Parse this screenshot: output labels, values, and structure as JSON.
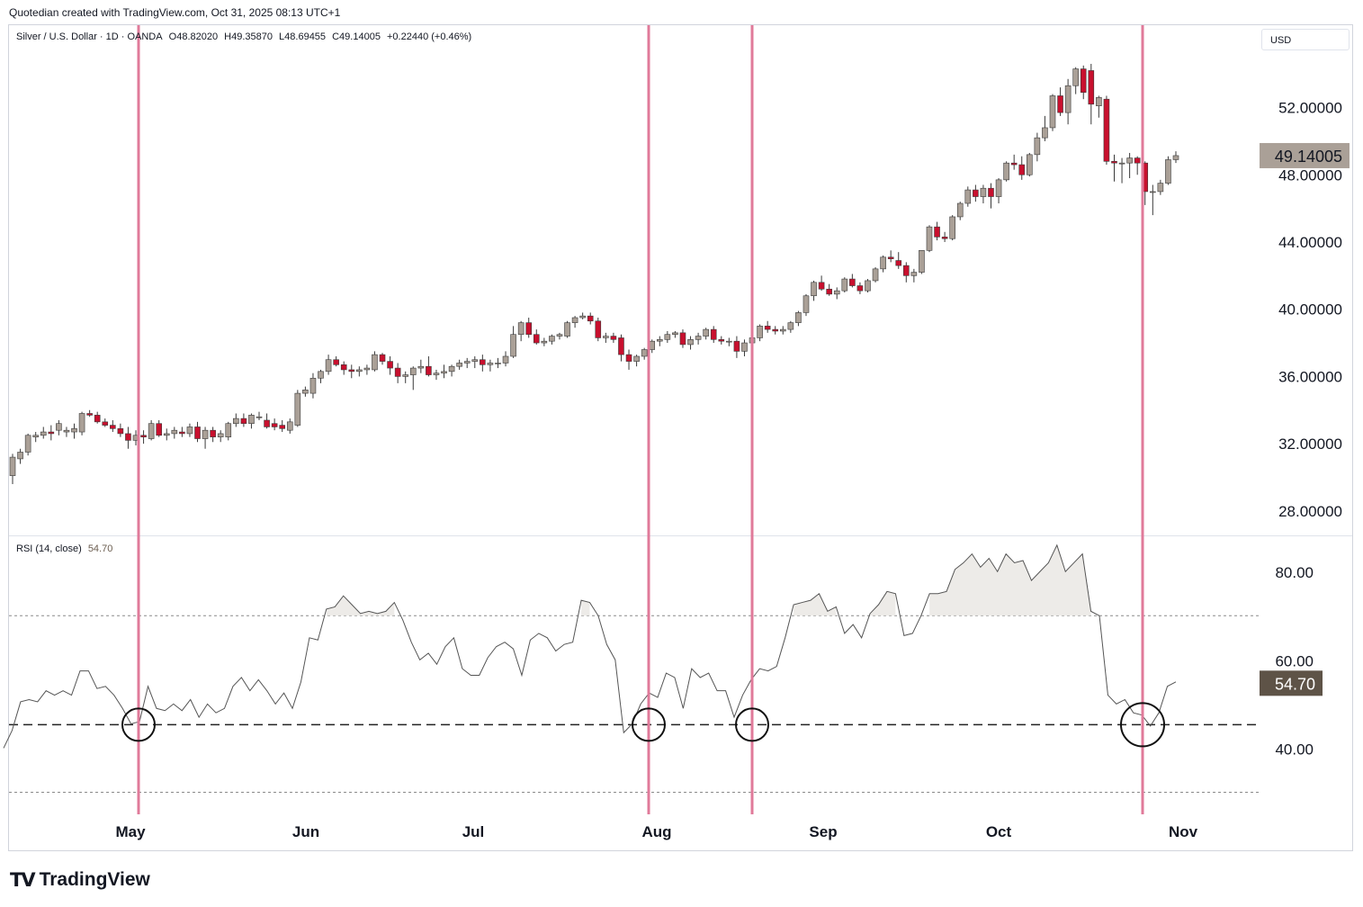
{
  "header": {
    "text": "Quotedian created with TradingView.com, Oct 31, 2025 08:13 UTC+1"
  },
  "legend": {
    "symbol": "Silver / U.S. Dollar · 1D · OANDA",
    "open": "O48.82020",
    "high": "H49.35870",
    "low": "L48.69455",
    "close": "C49.14005",
    "change": "+0.22440 (+0.46%)"
  },
  "currency": "USD",
  "rsi_legend": {
    "label": "RSI (14, close)",
    "value": "54.70"
  },
  "price_badge": "49.14005",
  "rsi_badge": "54.70",
  "brand": "TradingView",
  "colors": {
    "up": "#aaa097",
    "down": "#c8102e",
    "wick": "#3a3a3a",
    "marker": "#e07a9a",
    "badge_price": "#aaa097",
    "badge_rsi": "#5e5347"
  },
  "chart_data": [
    {
      "type": "candlestick",
      "title": "Silver / U.S. Dollar · 1D · OANDA",
      "y_ticks": [
        "28.00000",
        "32.00000",
        "36.00000",
        "40.00000",
        "44.00000",
        "48.00000",
        "52.00000"
      ],
      "ylim": [
        26.6,
        56.9
      ],
      "x_ticks": [
        "May",
        "Jun",
        "Jul",
        "Aug",
        "Sep",
        "Oct",
        "Nov"
      ],
      "last_price": 49.14,
      "ohlc": [
        [
          30.1,
          31.4,
          29.6,
          31.2
        ],
        [
          31.1,
          31.7,
          30.8,
          31.5
        ],
        [
          31.5,
          32.6,
          31.3,
          32.5
        ],
        [
          32.4,
          32.7,
          32.1,
          32.5
        ],
        [
          32.5,
          33.0,
          32.3,
          32.7
        ],
        [
          32.7,
          33.1,
          32.2,
          32.6
        ],
        [
          32.8,
          33.4,
          32.5,
          33.2
        ],
        [
          32.7,
          33.0,
          32.4,
          32.8
        ],
        [
          32.7,
          33.2,
          32.3,
          32.9
        ],
        [
          32.7,
          33.9,
          32.5,
          33.8
        ],
        [
          33.8,
          34.0,
          33.6,
          33.7
        ],
        [
          33.7,
          33.9,
          33.2,
          33.3
        ],
        [
          33.3,
          33.5,
          33.0,
          33.1
        ],
        [
          33.1,
          33.4,
          32.7,
          32.9
        ],
        [
          32.9,
          33.2,
          32.4,
          32.6
        ],
        [
          32.6,
          33.0,
          31.7,
          32.2
        ],
        [
          32.2,
          32.8,
          31.9,
          32.5
        ],
        [
          32.5,
          32.8,
          32.0,
          32.4
        ],
        [
          32.3,
          33.4,
          32.2,
          33.2
        ],
        [
          33.2,
          33.4,
          32.4,
          32.5
        ],
        [
          32.5,
          32.9,
          32.2,
          32.6
        ],
        [
          32.6,
          33.0,
          32.3,
          32.8
        ],
        [
          32.7,
          33.0,
          32.4,
          32.6
        ],
        [
          32.6,
          33.2,
          32.4,
          33.0
        ],
        [
          33.0,
          33.3,
          32.1,
          32.3
        ],
        [
          32.3,
          33.0,
          31.7,
          32.8
        ],
        [
          32.8,
          33.0,
          32.1,
          32.4
        ],
        [
          32.4,
          32.8,
          32.1,
          32.6
        ],
        [
          32.4,
          33.3,
          32.2,
          33.2
        ],
        [
          33.2,
          33.8,
          33.0,
          33.5
        ],
        [
          33.5,
          33.8,
          33.0,
          33.2
        ],
        [
          33.2,
          33.8,
          32.9,
          33.7
        ],
        [
          33.6,
          33.9,
          33.4,
          33.6
        ],
        [
          33.4,
          33.8,
          32.9,
          33.0
        ],
        [
          33.2,
          33.5,
          32.8,
          33.0
        ],
        [
          33.1,
          33.4,
          32.7,
          32.9
        ],
        [
          32.8,
          33.5,
          32.6,
          33.3
        ],
        [
          33.1,
          35.2,
          33.0,
          35.0
        ],
        [
          35.0,
          35.4,
          34.8,
          35.2
        ],
        [
          35.0,
          36.2,
          34.7,
          35.9
        ],
        [
          35.9,
          36.4,
          35.6,
          36.3
        ],
        [
          36.3,
          37.3,
          36.1,
          37.0
        ],
        [
          37.0,
          37.2,
          36.6,
          36.7
        ],
        [
          36.7,
          36.9,
          36.1,
          36.4
        ],
        [
          36.4,
          36.7,
          35.9,
          36.3
        ],
        [
          36.3,
          36.6,
          36.0,
          36.4
        ],
        [
          36.4,
          36.7,
          36.1,
          36.5
        ],
        [
          36.4,
          37.5,
          36.3,
          37.3
        ],
        [
          37.3,
          37.4,
          36.7,
          36.9
        ],
        [
          36.9,
          37.2,
          36.1,
          36.5
        ],
        [
          36.5,
          36.8,
          35.6,
          36.0
        ],
        [
          36.0,
          36.3,
          35.6,
          36.1
        ],
        [
          36.1,
          36.6,
          35.2,
          36.5
        ],
        [
          36.5,
          37.0,
          36.2,
          36.6
        ],
        [
          36.6,
          37.2,
          36.0,
          36.1
        ],
        [
          36.1,
          36.4,
          35.8,
          36.2
        ],
        [
          36.2,
          36.7,
          35.9,
          36.3
        ],
        [
          36.3,
          36.7,
          36.0,
          36.6
        ],
        [
          36.6,
          37.0,
          36.4,
          36.8
        ],
        [
          36.8,
          37.1,
          36.5,
          36.9
        ],
        [
          36.9,
          37.2,
          36.5,
          37.0
        ],
        [
          37.0,
          37.3,
          36.3,
          36.7
        ],
        [
          36.7,
          37.0,
          36.3,
          36.8
        ],
        [
          36.8,
          37.1,
          36.5,
          36.8
        ],
        [
          36.8,
          37.5,
          36.6,
          37.2
        ],
        [
          37.2,
          39.0,
          37.1,
          38.5
        ],
        [
          38.5,
          39.3,
          38.1,
          39.2
        ],
        [
          39.2,
          39.5,
          38.3,
          38.5
        ],
        [
          38.5,
          38.8,
          37.9,
          38.0
        ],
        [
          38.0,
          38.3,
          37.8,
          38.1
        ],
        [
          38.1,
          38.5,
          37.9,
          38.4
        ],
        [
          38.4,
          38.6,
          38.2,
          38.5
        ],
        [
          38.4,
          39.3,
          38.3,
          39.2
        ],
        [
          39.2,
          39.6,
          38.9,
          39.5
        ],
        [
          39.5,
          39.8,
          39.4,
          39.6
        ],
        [
          39.6,
          39.8,
          39.1,
          39.3
        ],
        [
          39.3,
          39.5,
          38.1,
          38.3
        ],
        [
          38.3,
          38.6,
          38.0,
          38.4
        ],
        [
          38.4,
          38.6,
          38.0,
          38.2
        ],
        [
          38.3,
          38.5,
          36.9,
          37.3
        ],
        [
          37.3,
          37.6,
          36.4,
          36.9
        ],
        [
          36.9,
          37.3,
          36.6,
          37.2
        ],
        [
          37.2,
          37.7,
          37.0,
          37.6
        ],
        [
          37.6,
          38.2,
          37.4,
          38.1
        ],
        [
          38.1,
          38.4,
          37.8,
          38.2
        ],
        [
          38.2,
          38.7,
          38.0,
          38.5
        ],
        [
          38.5,
          38.7,
          38.3,
          38.6
        ],
        [
          38.6,
          38.8,
          37.7,
          37.9
        ],
        [
          37.9,
          38.4,
          37.6,
          38.2
        ],
        [
          38.2,
          38.6,
          37.9,
          38.4
        ],
        [
          38.4,
          38.9,
          38.2,
          38.8
        ],
        [
          38.8,
          39.0,
          38.0,
          38.2
        ],
        [
          38.2,
          38.4,
          37.9,
          38.1
        ],
        [
          38.1,
          38.3,
          37.8,
          38.1
        ],
        [
          38.1,
          38.4,
          37.1,
          37.5
        ],
        [
          37.5,
          38.2,
          37.2,
          38.0
        ],
        [
          38.0,
          38.4,
          37.8,
          38.3
        ],
        [
          38.3,
          39.1,
          38.1,
          39.0
        ],
        [
          39.0,
          39.3,
          38.6,
          38.8
        ],
        [
          38.8,
          39.0,
          38.5,
          38.7
        ],
        [
          38.7,
          39.0,
          38.5,
          38.8
        ],
        [
          38.8,
          39.3,
          38.6,
          39.2
        ],
        [
          39.2,
          39.9,
          39.0,
          39.8
        ],
        [
          39.8,
          40.9,
          39.6,
          40.8
        ],
        [
          40.8,
          41.7,
          40.5,
          41.6
        ],
        [
          41.6,
          42.0,
          41.1,
          41.2
        ],
        [
          41.2,
          41.5,
          40.8,
          40.9
        ],
        [
          40.9,
          41.3,
          40.6,
          41.1
        ],
        [
          41.1,
          41.9,
          41.0,
          41.8
        ],
        [
          41.8,
          42.1,
          41.3,
          41.4
        ],
        [
          41.4,
          41.6,
          40.9,
          41.1
        ],
        [
          41.1,
          41.8,
          41.0,
          41.7
        ],
        [
          41.7,
          42.5,
          41.6,
          42.4
        ],
        [
          42.4,
          43.2,
          42.2,
          43.1
        ],
        [
          43.1,
          43.5,
          42.8,
          43.0
        ],
        [
          42.9,
          43.4,
          42.4,
          42.6
        ],
        [
          42.6,
          42.8,
          41.6,
          42.0
        ],
        [
          42.0,
          42.4,
          41.6,
          42.2
        ],
        [
          42.2,
          43.5,
          42.1,
          43.5
        ],
        [
          43.5,
          45.0,
          43.4,
          44.9
        ],
        [
          44.9,
          45.2,
          44.1,
          44.3
        ],
        [
          44.3,
          44.6,
          44.0,
          44.2
        ],
        [
          44.2,
          45.6,
          44.1,
          45.5
        ],
        [
          45.5,
          46.4,
          45.3,
          46.3
        ],
        [
          46.3,
          47.3,
          46.1,
          47.1
        ],
        [
          47.1,
          47.4,
          46.4,
          46.7
        ],
        [
          46.7,
          47.4,
          46.3,
          47.2
        ],
        [
          47.2,
          47.5,
          46.0,
          46.7
        ],
        [
          46.7,
          47.8,
          46.3,
          47.7
        ],
        [
          47.7,
          48.8,
          47.6,
          48.7
        ],
        [
          48.7,
          49.2,
          48.3,
          48.6
        ],
        [
          48.6,
          49.1,
          47.7,
          48.0
        ],
        [
          48.0,
          49.3,
          47.9,
          49.2
        ],
        [
          49.2,
          50.5,
          48.8,
          50.2
        ],
        [
          50.2,
          51.5,
          50.0,
          50.8
        ],
        [
          50.8,
          52.8,
          50.6,
          52.7
        ],
        [
          52.7,
          53.2,
          51.5,
          51.7
        ],
        [
          51.7,
          53.7,
          51.0,
          53.3
        ],
        [
          53.3,
          54.4,
          52.8,
          54.3
        ],
        [
          54.3,
          54.5,
          52.5,
          52.9
        ],
        [
          54.2,
          54.6,
          51.0,
          52.2
        ],
        [
          52.1,
          52.7,
          51.4,
          52.6
        ],
        [
          52.5,
          52.7,
          48.6,
          48.8
        ],
        [
          48.8,
          49.2,
          47.6,
          48.7
        ],
        [
          48.7,
          49.0,
          47.5,
          48.7
        ],
        [
          48.7,
          49.3,
          47.8,
          49.0
        ],
        [
          49.0,
          49.1,
          48.0,
          48.7
        ],
        [
          48.7,
          48.8,
          46.2,
          47.0
        ],
        [
          47.0,
          47.4,
          45.6,
          47.0
        ],
        [
          47.0,
          47.7,
          46.8,
          47.5
        ],
        [
          47.5,
          49.1,
          47.4,
          48.9
        ],
        [
          48.9,
          49.4,
          48.7,
          49.14
        ]
      ]
    },
    {
      "type": "line",
      "title": "RSI (14, close)",
      "y_ticks": [
        "40.00",
        "60.00",
        "80.00"
      ],
      "ylim": [
        25,
        88
      ],
      "levels": {
        "upper": 70,
        "lower": 30,
        "support": 45.3
      },
      "last_value": 54.7,
      "values": [
        40.0,
        44.0,
        50.5,
        51.0,
        50.5,
        53.0,
        52.0,
        53.0,
        52.0,
        57.5,
        57.5,
        53.5,
        54.0,
        52.0,
        49.0,
        45.5,
        46.0,
        54.0,
        49.0,
        48.5,
        50.0,
        48.5,
        51.0,
        47.0,
        50.0,
        48.0,
        49.0,
        54.0,
        56.0,
        53.0,
        55.5,
        53.0,
        50.0,
        52.5,
        49.0,
        55.0,
        65.0,
        64.5,
        71.5,
        72.0,
        74.5,
        72.5,
        70.5,
        71.0,
        70.5,
        71.0,
        73.0,
        69.0,
        64.0,
        60.0,
        61.5,
        59.0,
        63.0,
        65.0,
        58.0,
        56.5,
        56.5,
        60.5,
        63.0,
        64.0,
        62.5,
        56.5,
        64.5,
        66.0,
        65.0,
        62.0,
        63.5,
        64.0,
        73.5,
        73.0,
        70.0,
        63.5,
        60.0,
        43.5,
        45.5,
        50.0,
        52.5,
        51.5,
        57.0,
        56.0,
        49.0,
        58.0,
        56.0,
        57.0,
        53.0,
        53.0,
        47.0,
        52.0,
        55.5,
        58.0,
        57.5,
        58.5,
        65.0,
        72.5,
        73.0,
        73.5,
        75.0,
        71.0,
        72.0,
        66.0,
        68.0,
        65.0,
        70.5,
        72.5,
        75.5,
        75.0,
        65.5,
        66.0,
        70.0,
        75.0,
        75.0,
        75.5,
        80.5,
        82.0,
        84.0,
        81.0,
        83.0,
        80.0,
        84.0,
        82.0,
        82.5,
        78.0,
        80.0,
        82.0,
        86.0,
        80.0,
        82.0,
        84.0,
        71.0,
        70.0,
        52.0,
        50.0,
        51.0,
        48.0,
        47.5,
        45.0,
        48.0,
        54.0,
        55.0
      ]
    }
  ]
}
